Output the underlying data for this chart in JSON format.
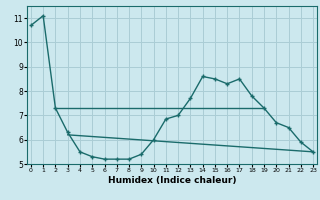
{
  "xlabel": "Humidex (Indice chaleur)",
  "bg_color": "#cce8ee",
  "line_color": "#1a6b6b",
  "grid_color": "#aacdd5",
  "main_x": [
    0,
    1,
    2,
    3,
    4,
    5,
    6,
    7,
    8,
    9,
    10,
    11,
    12,
    13,
    14,
    15,
    16,
    17,
    18,
    19,
    20,
    21,
    22,
    23
  ],
  "main_y": [
    10.7,
    11.1,
    7.3,
    6.3,
    5.5,
    5.3,
    5.2,
    5.2,
    5.2,
    5.4,
    6.0,
    6.85,
    7.0,
    7.7,
    8.6,
    8.5,
    8.3,
    8.5,
    7.8,
    7.3,
    6.7,
    6.5,
    5.9,
    5.5
  ],
  "trend1_x": [
    2,
    19
  ],
  "trend1_y": [
    7.3,
    7.3
  ],
  "trend2_x": [
    3,
    23
  ],
  "trend2_y": [
    6.2,
    5.5
  ],
  "ylim": [
    5.0,
    11.5
  ],
  "xlim": [
    -0.3,
    23.3
  ],
  "yticks": [
    5,
    6,
    7,
    8,
    9,
    10,
    11
  ],
  "xticks": [
    0,
    1,
    2,
    3,
    4,
    5,
    6,
    7,
    8,
    9,
    10,
    11,
    12,
    13,
    14,
    15,
    16,
    17,
    18,
    19,
    20,
    21,
    22,
    23
  ]
}
